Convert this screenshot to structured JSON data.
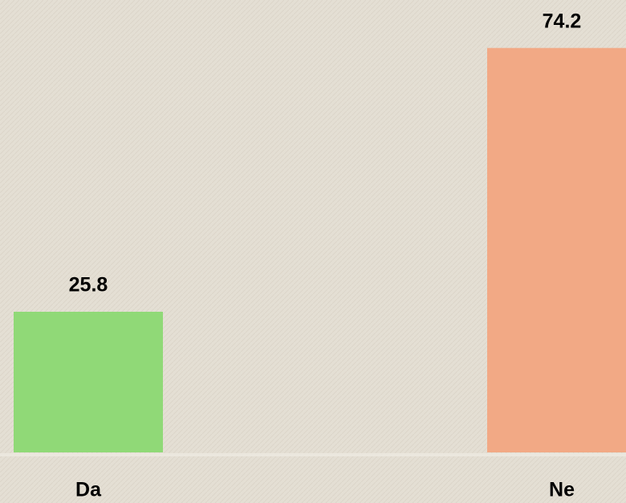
{
  "chart_data": {
    "type": "bar",
    "categories": [
      "Da",
      "Ne"
    ],
    "values": [
      25.8,
      74.2
    ],
    "colors": [
      "#90d977",
      "#f2a985"
    ],
    "ylim": [
      0,
      83
    ]
  }
}
